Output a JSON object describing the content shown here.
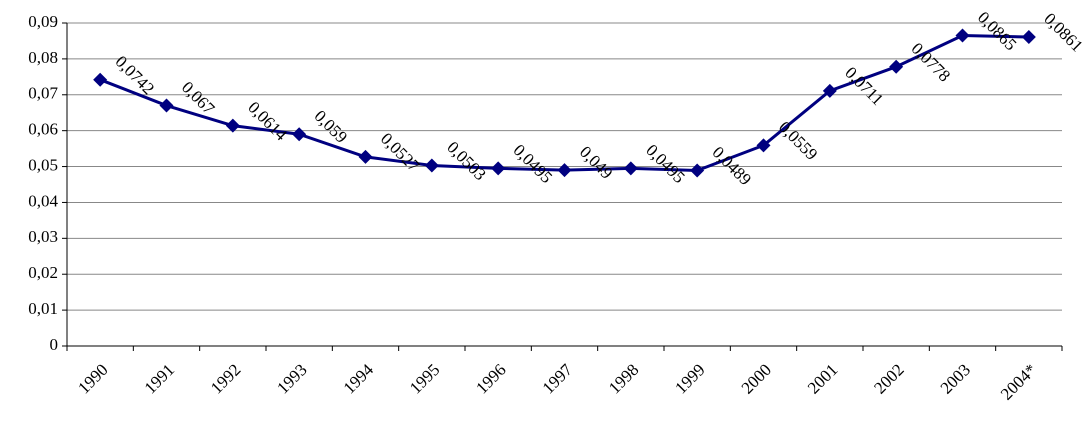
{
  "chart_data": {
    "type": "line",
    "categories": [
      "1990",
      "1991",
      "1992",
      "1993",
      "1994",
      "1995",
      "1996",
      "1997",
      "1998",
      "1999",
      "2000",
      "2001",
      "2002",
      "2003",
      "2004*"
    ],
    "series": [
      {
        "color": "#000080",
        "values": [
          0.0742,
          0.067,
          0.0614,
          0.059,
          0.0527,
          0.0503,
          0.0495,
          0.049,
          0.0495,
          0.0489,
          0.0559,
          0.0711,
          0.0778,
          0.0865,
          0.0861
        ],
        "value_labels": [
          "0,0742",
          "0,067",
          "0,0614",
          "0,059",
          "0,0527",
          "0,0503",
          "0,0495",
          "0,049",
          "0,0495",
          "0,0489",
          "0,0559",
          "0,0711",
          "0,0778",
          "0,0865",
          "0,0861"
        ]
      }
    ],
    "ylim": [
      0,
      0.09
    ],
    "yticks": [
      0,
      {
        "value": 0.01,
        "label": "0,01"
      },
      {
        "value": 0.02,
        "label": "0,02"
      },
      {
        "value": 0.03,
        "label": "0,03"
      },
      {
        "value": 0.04,
        "label": "0,04"
      },
      {
        "value": 0.05,
        "label": "0,05"
      },
      {
        "value": 0.06,
        "label": "0,06"
      },
      {
        "value": 0.07,
        "label": "0,07"
      },
      {
        "value": 0.08,
        "label": "0,08"
      },
      {
        "value": 0.09,
        "label": "0,09"
      }
    ],
    "grid": true
  }
}
